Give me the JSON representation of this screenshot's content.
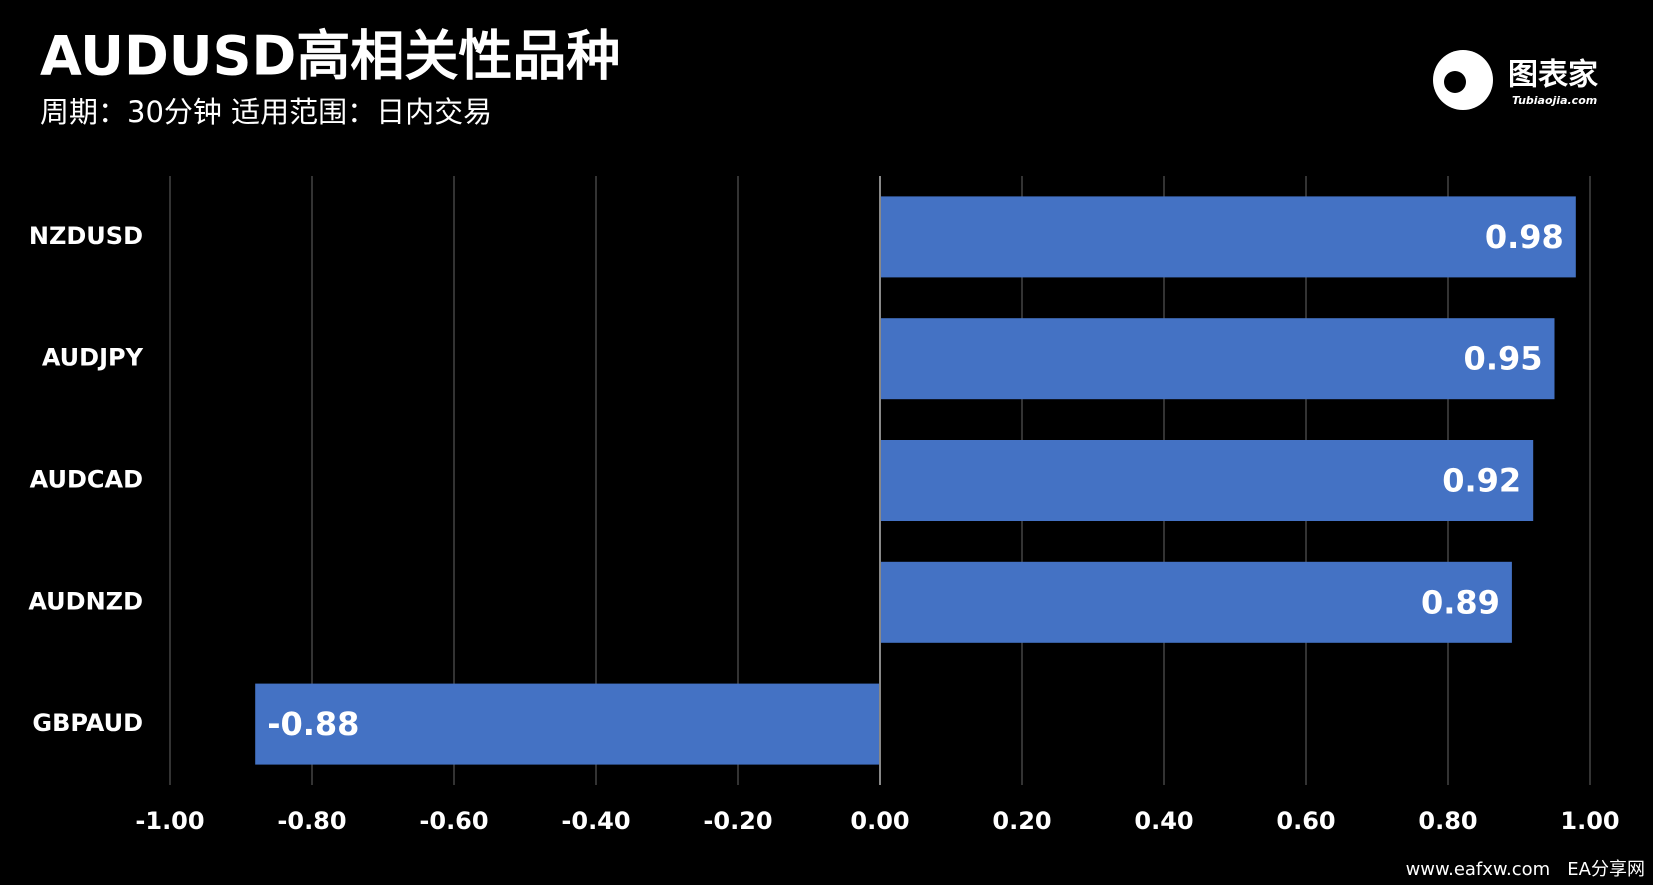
{
  "chart_data": {
    "type": "barh",
    "title": "AUDUSD高相关性品种",
    "subtitle": "周期：30分钟  适用范围：日内交易",
    "categories": [
      "NZDUSD",
      "AUDJPY",
      "AUDCAD",
      "AUDNZD",
      "GBPAUD"
    ],
    "values": [
      0.98,
      0.95,
      0.92,
      0.89,
      -0.88
    ],
    "color": "#4472c4",
    "xlim": [
      -1,
      1
    ],
    "xticks": [
      {
        "value": -1,
        "label": "-1.00"
      },
      {
        "value": -0.8,
        "label": "-0.80"
      },
      {
        "value": -0.6,
        "label": "-0.60"
      },
      {
        "value": -0.4,
        "label": "-0.40"
      },
      {
        "value": -0.2,
        "label": "-0.20"
      },
      {
        "value": 0,
        "label": "0.00"
      },
      {
        "value": 0.2,
        "label": "0.20"
      },
      {
        "value": 0.4,
        "label": "0.40"
      },
      {
        "value": 0.6,
        "label": "0.60"
      },
      {
        "value": 0.8,
        "label": "0.80"
      },
      {
        "value": 1,
        "label": "1.00"
      }
    ],
    "grid": true
  },
  "logo": {
    "name": "图表家",
    "url": "Tubiaojia.com"
  },
  "watermark": "www.eafxw.com   EA分享网"
}
